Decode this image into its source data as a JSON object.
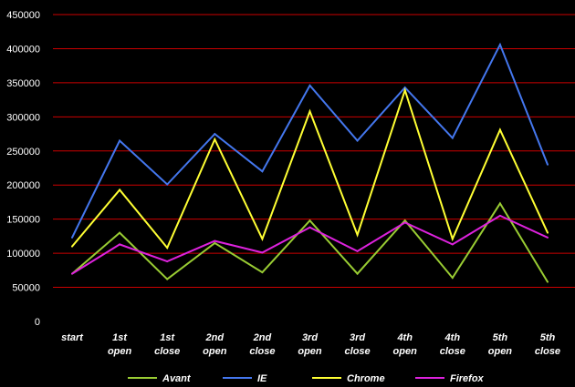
{
  "chart_data": {
    "type": "line",
    "categories": [
      [
        "start"
      ],
      [
        "1st",
        "open"
      ],
      [
        "1st",
        "close"
      ],
      [
        "2nd",
        "open"
      ],
      [
        "2nd",
        "close"
      ],
      [
        "3rd",
        "open"
      ],
      [
        "3rd",
        "close"
      ],
      [
        "4th",
        "open"
      ],
      [
        "4th",
        "close"
      ],
      [
        "5th",
        "open"
      ],
      [
        "5th",
        "close"
      ]
    ],
    "series": [
      {
        "name": "Avant",
        "color": "#99cc33",
        "values": [
          70000,
          130000,
          62000,
          115000,
          72000,
          148000,
          70000,
          148000,
          64000,
          173000,
          58000
        ]
      },
      {
        "name": "IE",
        "color": "#4477ee",
        "values": [
          123000,
          265000,
          201000,
          275000,
          220000,
          346000,
          265000,
          343000,
          269000,
          406000,
          230000
        ]
      },
      {
        "name": "Chrome",
        "color": "#ffff33",
        "values": [
          110000,
          193000,
          108000,
          267000,
          121000,
          308000,
          127000,
          339000,
          121000,
          281000,
          130000
        ]
      },
      {
        "name": "Firefox",
        "color": "#dd22dd",
        "values": [
          70000,
          113000,
          88000,
          118000,
          101000,
          138000,
          103000,
          145000,
          113000,
          155000,
          123000
        ]
      }
    ],
    "yticks": [
      "0",
      "50000",
      "100000",
      "150000",
      "200000",
      "250000",
      "300000",
      "350000",
      "400000",
      "450000"
    ],
    "ylim": [
      0,
      450000
    ],
    "grid": true,
    "grid_color": "#cc0000",
    "background": "#000000",
    "legend_position": "bottom",
    "title": "",
    "xlabel": "",
    "ylabel": ""
  }
}
